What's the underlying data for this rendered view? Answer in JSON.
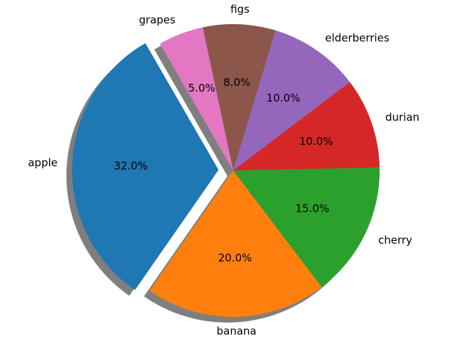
{
  "chart_data": {
    "type": "pie",
    "categories": [
      "apple",
      "banana",
      "cherry",
      "durian",
      "elderberries",
      "figs",
      "grapes"
    ],
    "values": [
      32,
      20,
      15,
      10,
      10,
      8,
      5
    ],
    "percent_labels": [
      "32.0%",
      "20.0%",
      "15.0%",
      "10.0%",
      "10.0%",
      "8.0%",
      "5.0%"
    ],
    "colors": [
      "#1f77b4",
      "#ff7f0e",
      "#2ca02c",
      "#d62728",
      "#9467bd",
      "#8c564b",
      "#e377c2"
    ],
    "explode": [
      0.1,
      0,
      0,
      0,
      0,
      0,
      0
    ],
    "start_angle_deg": 120,
    "shadow": true,
    "title": ""
  }
}
